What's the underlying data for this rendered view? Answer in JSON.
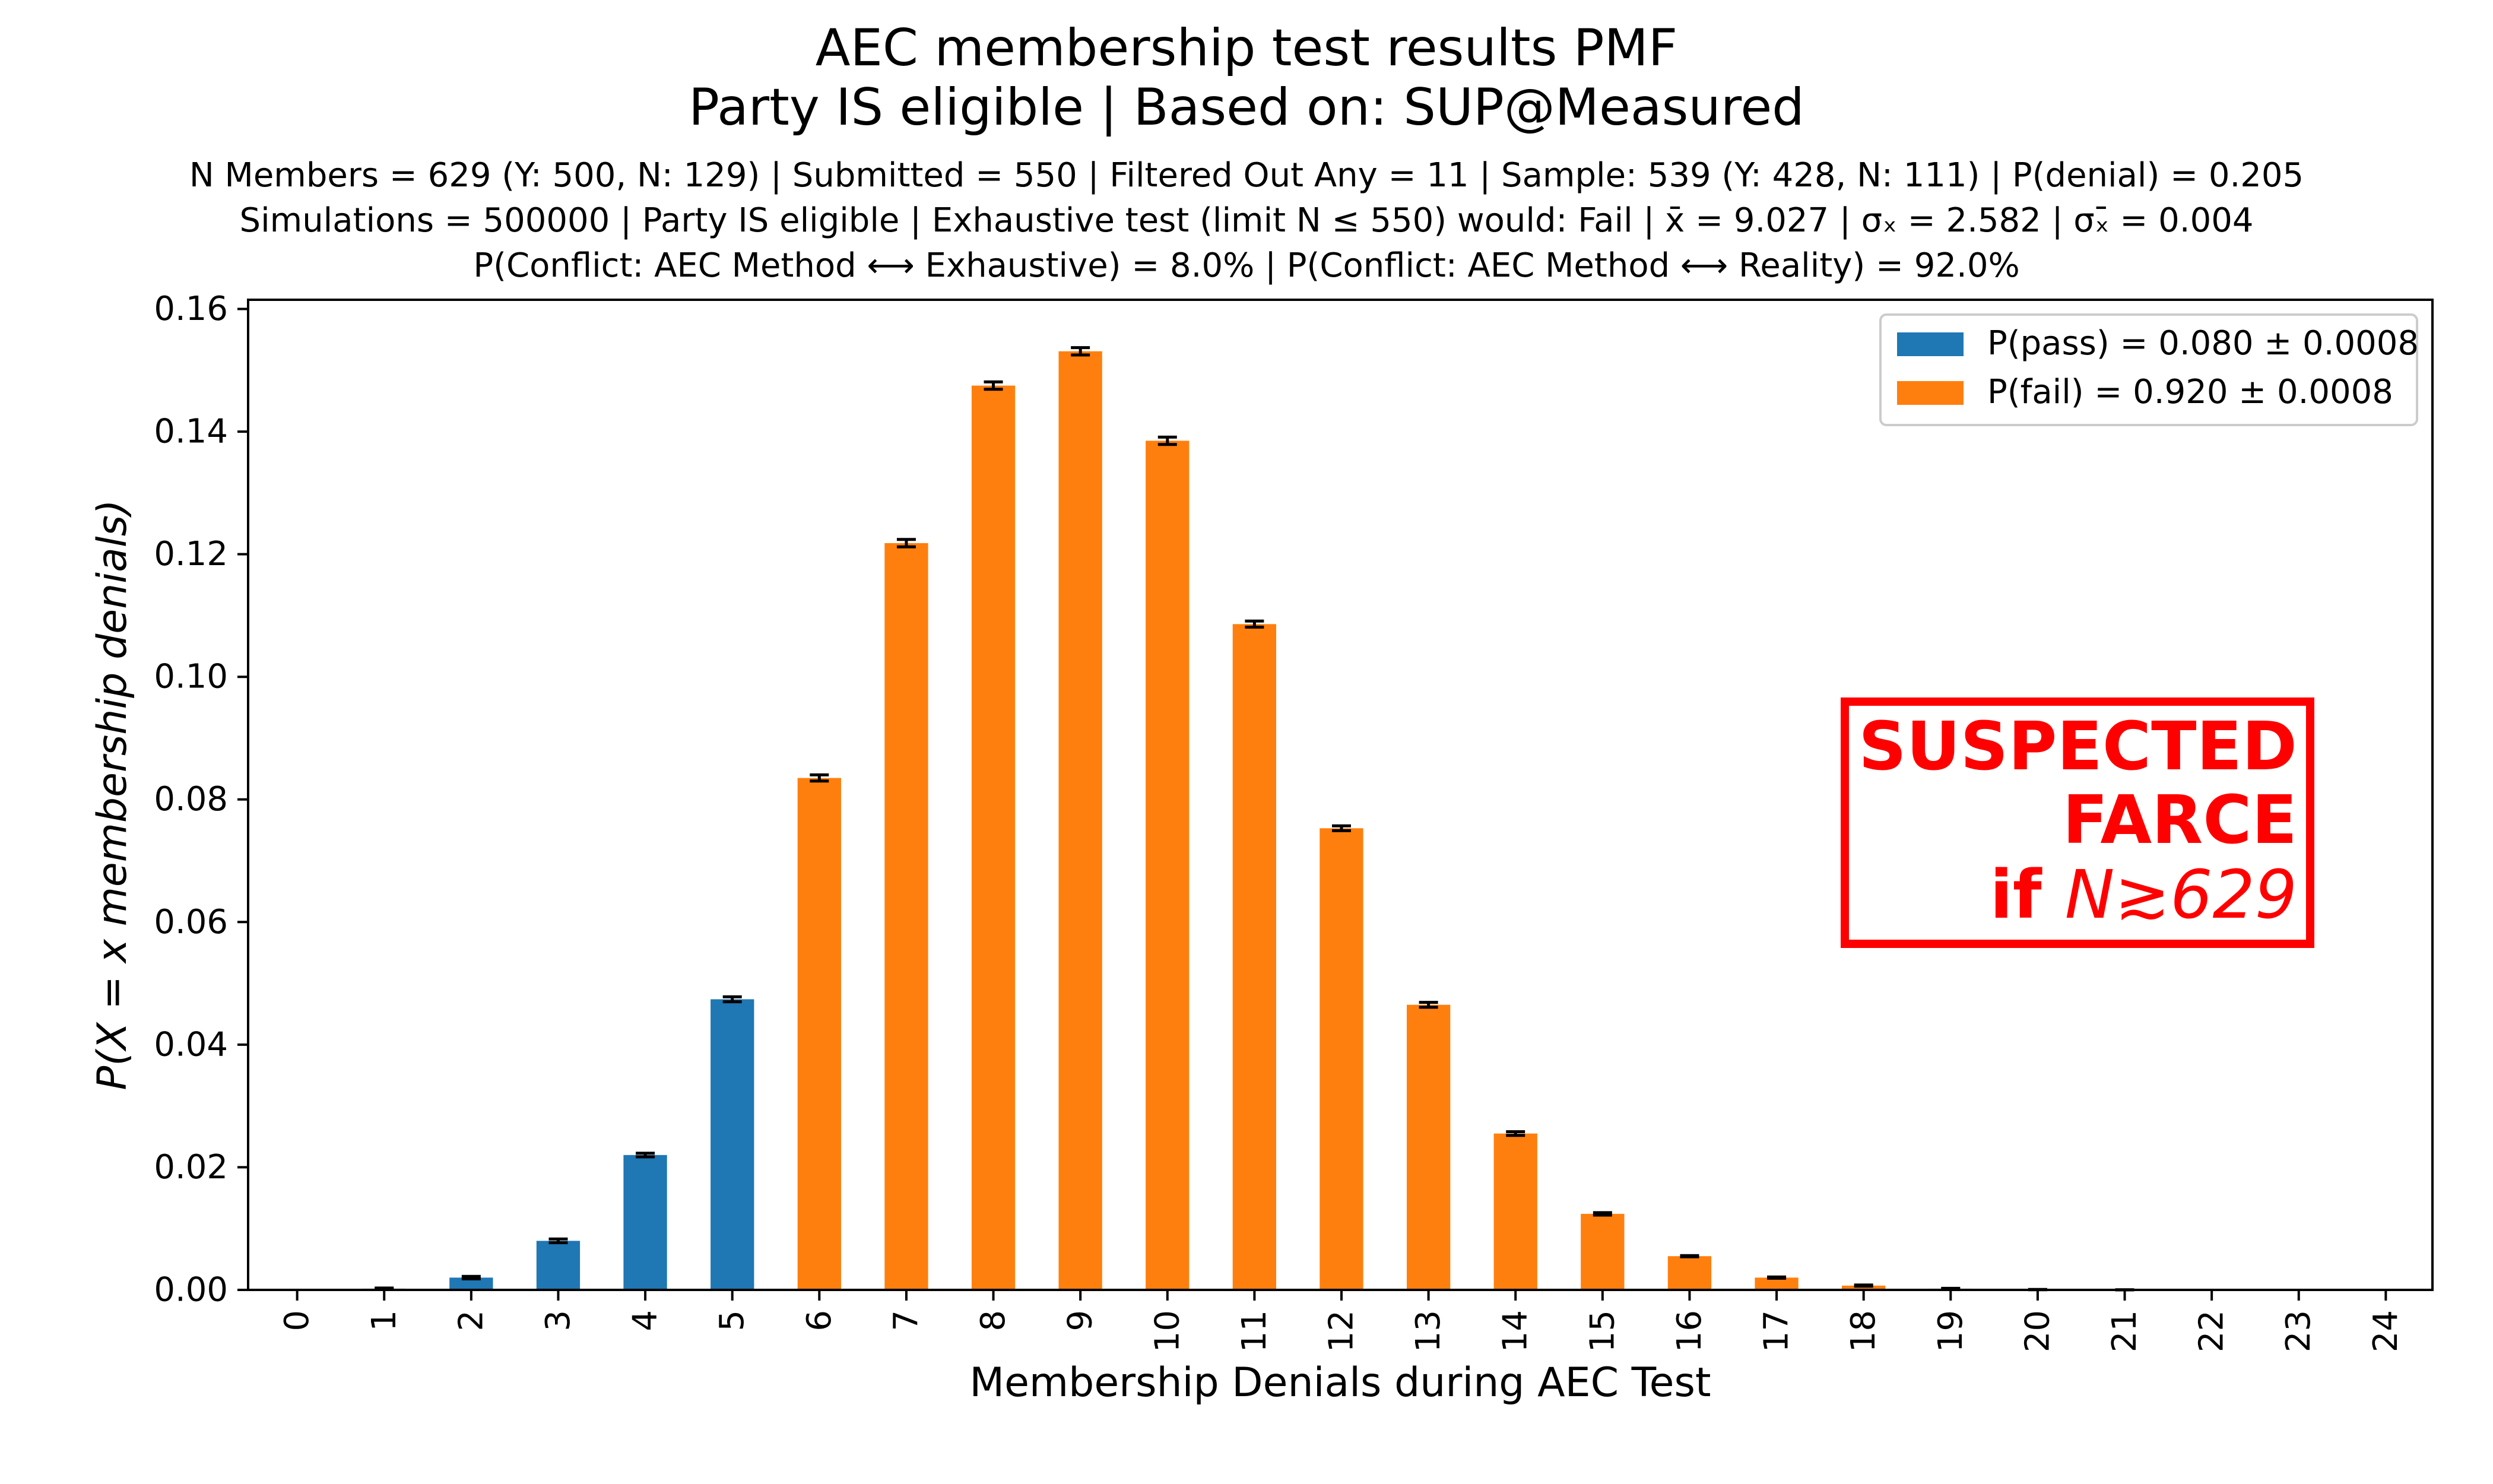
{
  "title_line1": "AEC membership test results PMF",
  "title_line2": "Party IS eligible | Based on: SUP@Measured",
  "subtitle_line1": "N Members = 629 (Y: 500, N: 129) | Submitted = 550 | Filtered Out Any = 11 | Sample: 539 (Y: 428, N: 111) | P(denial) = 0.205",
  "subtitle_line2": "Simulations = 500000 | Party IS eligible | Exhaustive test (limit N ≤ 550) would: Fail | x̄ = 9.027 | σₓ = 2.582 | σₓ̄ = 0.004",
  "subtitle_line3": "P(Conflict: AEC Method ⟷ Exhaustive) = 8.0% | P(Conflict: AEC Method ⟷ Reality) = 92.0%",
  "stamp": {
    "line1": "SUSPECTED",
    "line2": "FARCE",
    "line3_prefix": "if ",
    "line3_math": "N≳629",
    "color": "#ff0000"
  },
  "chart_data": {
    "type": "bar",
    "xlabel": "Membership Denials during AEC Test",
    "ylabel": "P(X = x membership denials)",
    "ylim": [
      0,
      0.1615
    ],
    "yticks": [
      "0.00",
      "0.02",
      "0.04",
      "0.06",
      "0.08",
      "0.10",
      "0.12",
      "0.14",
      "0.16"
    ],
    "categories": [
      "0",
      "1",
      "2",
      "3",
      "4",
      "5",
      "6",
      "7",
      "8",
      "9",
      "10",
      "11",
      "12",
      "13",
      "14",
      "15",
      "16",
      "17",
      "18",
      "19",
      "20",
      "21",
      "22",
      "23",
      "24"
    ],
    "values": [
      0.0,
      0.0002,
      0.002,
      0.008,
      0.022,
      0.0474,
      0.0835,
      0.1218,
      0.1475,
      0.1531,
      0.1385,
      0.1086,
      0.0753,
      0.0465,
      0.0255,
      0.0124,
      0.0055,
      0.002,
      0.0007,
      0.0002,
      5e-05,
      1e-05,
      0.0,
      0.0,
      0.0
    ],
    "errors": [
      2e-05,
      0.0001,
      0.0002,
      0.0003,
      0.0003,
      0.0004,
      0.0005,
      0.0006,
      0.0006,
      0.0006,
      0.0006,
      0.0005,
      0.0004,
      0.0004,
      0.0003,
      0.0002,
      0.0001,
      0.0001,
      0.0001,
      5e-05,
      2e-05,
      1e-05,
      0.0,
      0.0,
      0.0
    ],
    "pass_max_category": 5,
    "series": [
      {
        "name": "P(pass) = 0.080 ± 0.0008",
        "color": "#1f77b4"
      },
      {
        "name": "P(fail) = 0.920 ± 0.0008",
        "color": "#ff7f0e"
      }
    ],
    "legend_placement": "top-right",
    "grid": false
  }
}
